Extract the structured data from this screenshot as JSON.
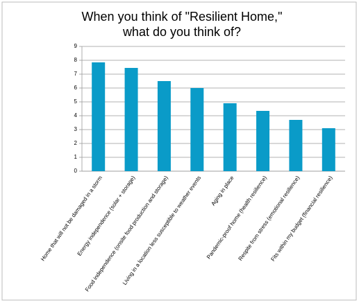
{
  "chart_data": {
    "type": "bar",
    "title": [
      "When you think of \"Resilient Home,\"",
      "what do you think of?"
    ],
    "categories": [
      "Home that will not be damaged in a storm",
      "Energy independence (solar + storage)",
      "Food independence (onsite food production and storage)",
      "Living in a location less susceptible to weather events",
      "Aging in place",
      "Pandemic-proof home (health resilience)",
      "Respite from stress (emotional resilience)",
      "Fits within my budget (financial resilience)"
    ],
    "values": [
      7.85,
      7.45,
      6.5,
      6.0,
      4.9,
      4.35,
      3.7,
      3.1
    ],
    "color": "#0a9bc8",
    "ylim": [
      0,
      9
    ],
    "yticks": [
      0,
      1,
      2,
      3,
      4,
      5,
      6,
      7,
      8,
      9
    ],
    "grid": true
  }
}
